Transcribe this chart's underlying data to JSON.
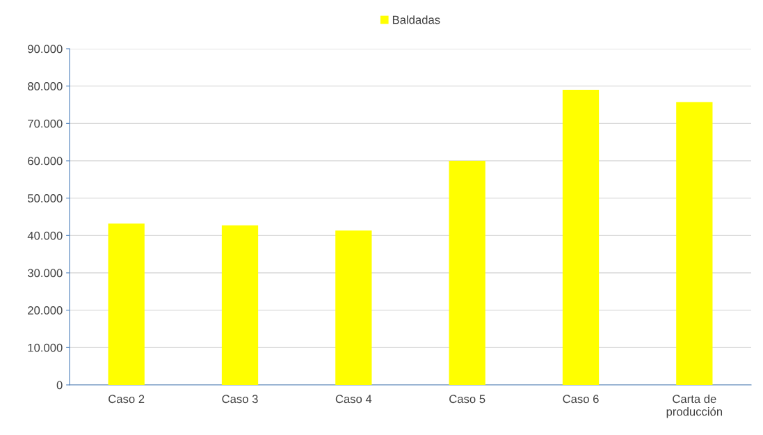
{
  "chart_data": {
    "type": "bar",
    "categories": [
      "Caso 2",
      "Caso 3",
      "Caso 4",
      "Caso 5",
      "Caso 6",
      "Carta de\nproducción"
    ],
    "series": [
      {
        "name": "Baldadas",
        "color": "#ffff00",
        "values": [
          43200,
          42700,
          41300,
          60000,
          79000,
          75700
        ]
      }
    ],
    "ylim": [
      0,
      90000
    ],
    "yticks": [
      {
        "value": 0,
        "label": "0"
      },
      {
        "value": 10000,
        "label": "10.000"
      },
      {
        "value": 20000,
        "label": "20.000"
      },
      {
        "value": 30000,
        "label": "30.000"
      },
      {
        "value": 40000,
        "label": "40.000"
      },
      {
        "value": 50000,
        "label": "50.000"
      },
      {
        "value": 60000,
        "label": "60.000"
      },
      {
        "value": 70000,
        "label": "70.000"
      },
      {
        "value": 80000,
        "label": "80.000"
      },
      {
        "value": 90000,
        "label": "90.000"
      }
    ],
    "grid": "y",
    "legend": "top"
  }
}
